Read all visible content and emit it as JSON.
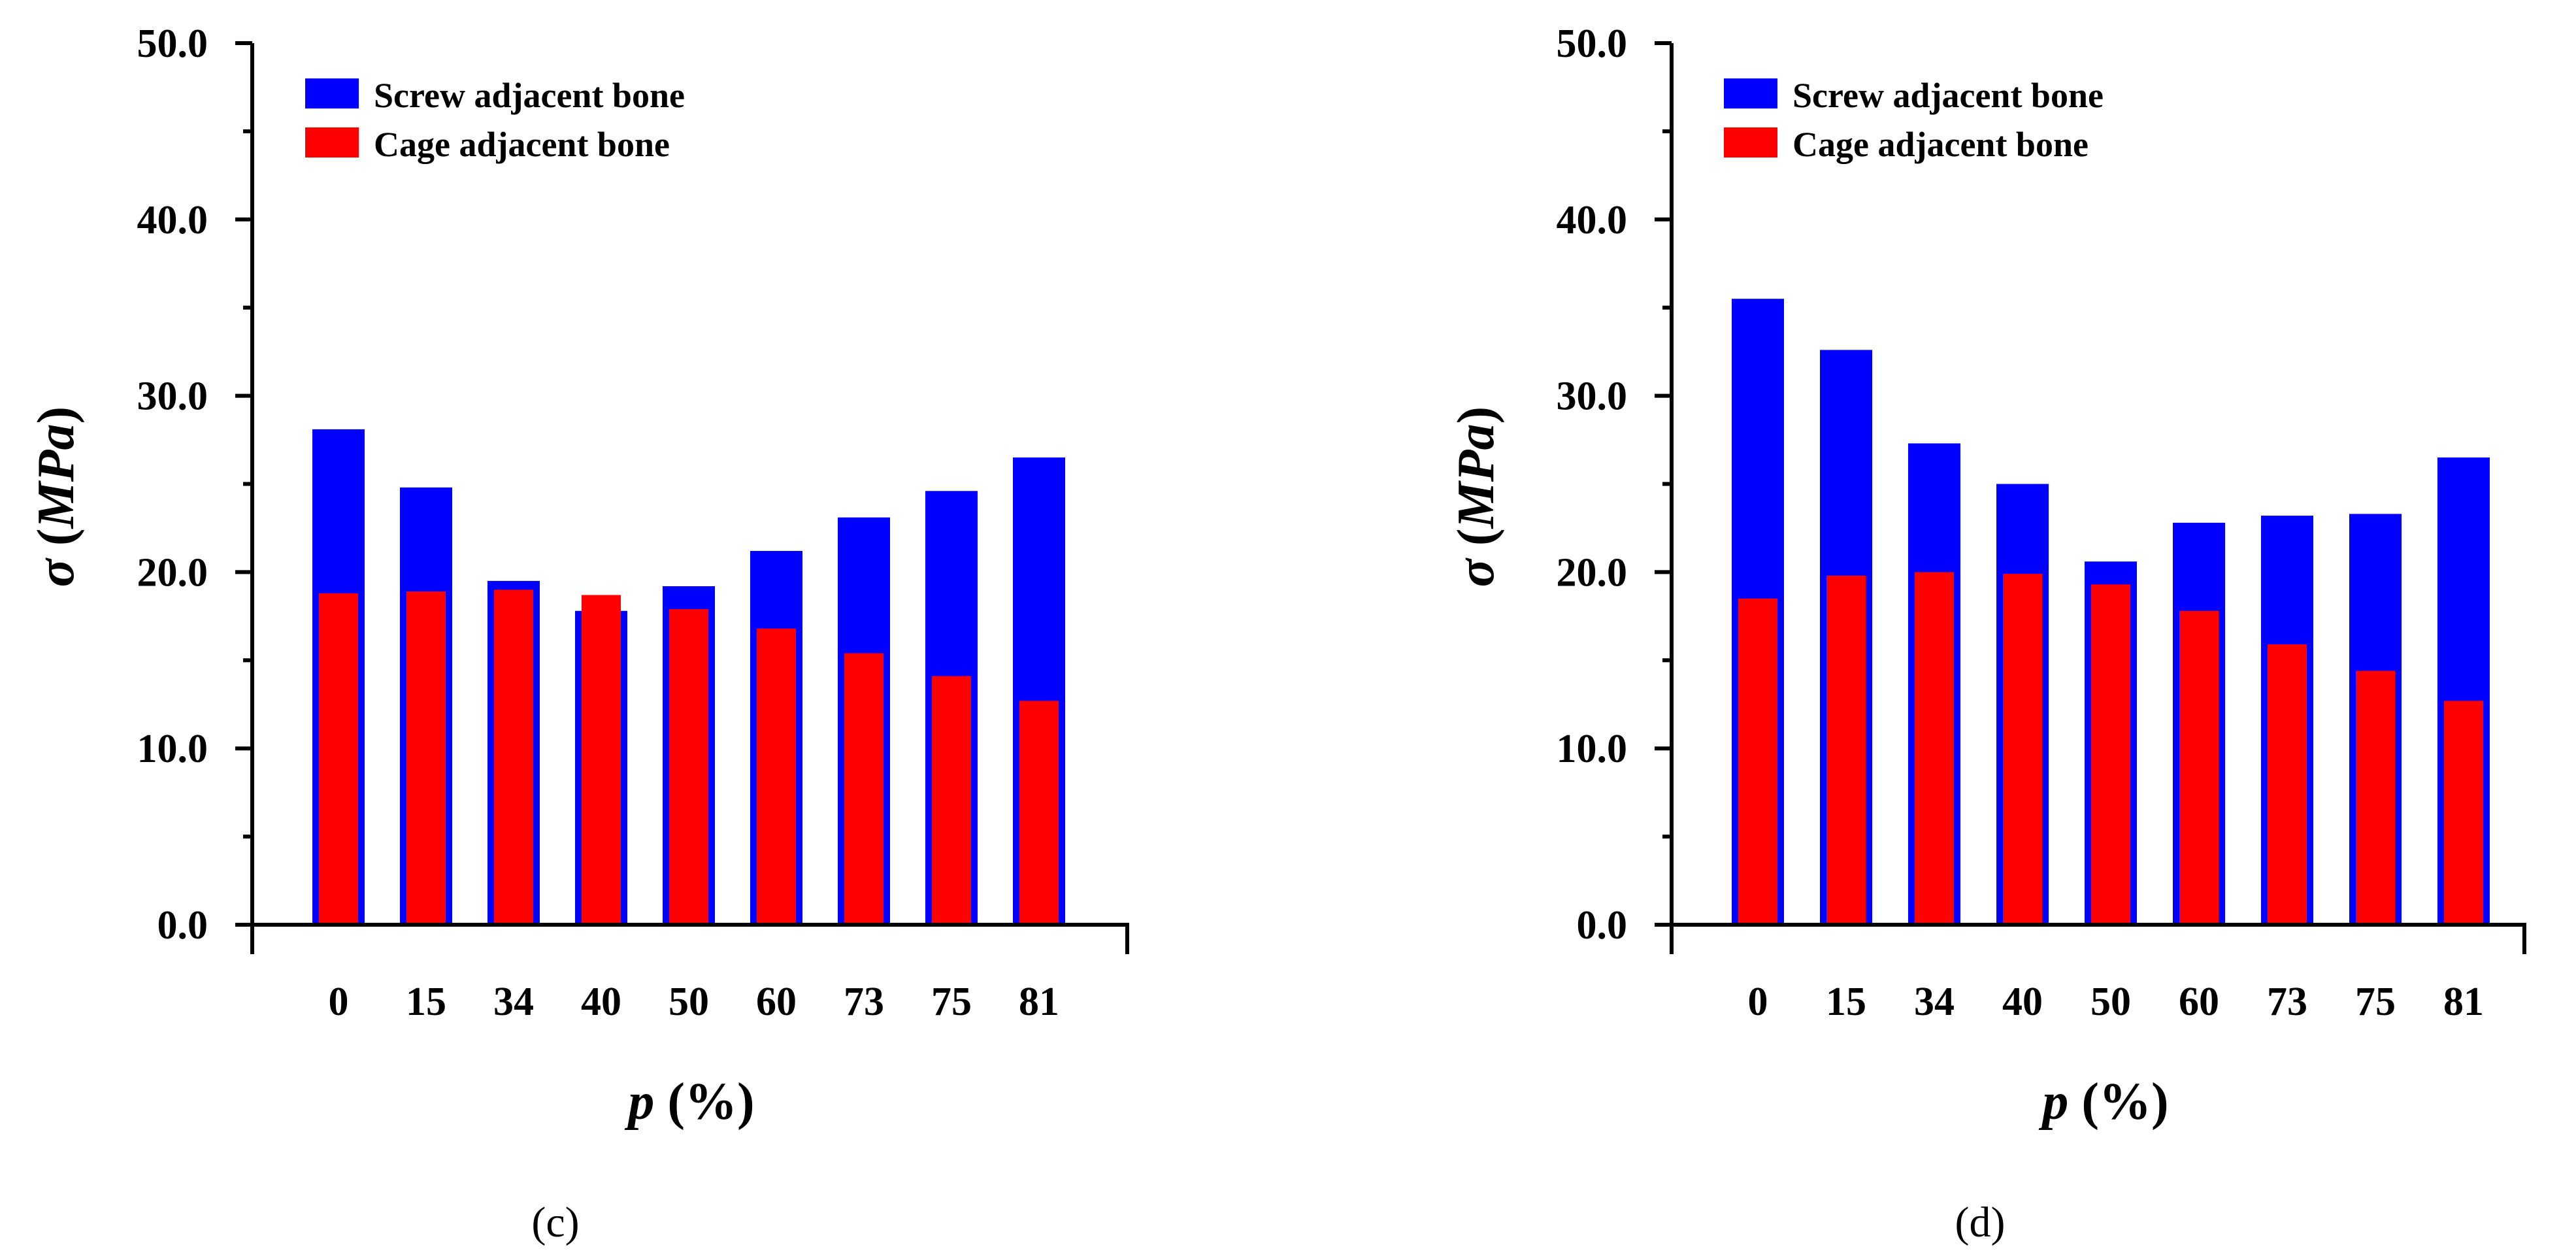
{
  "chart_data": [
    {
      "type": "bar",
      "panel_label": "(c)",
      "categories": [
        "0",
        "15",
        "34",
        "40",
        "50",
        "60",
        "73",
        "75",
        "81"
      ],
      "series": [
        {
          "name": "Screw adjacent bone",
          "color": "#0000ff",
          "values": [
            28.1,
            24.8,
            19.5,
            17.8,
            19.2,
            21.2,
            23.1,
            24.6,
            26.5
          ]
        },
        {
          "name": "Cage adjacent bone",
          "color": "#ff0000",
          "values": [
            18.8,
            18.9,
            19.0,
            18.7,
            17.9,
            16.8,
            15.4,
            14.1,
            12.7
          ]
        }
      ],
      "ylim": [
        0,
        50
      ],
      "yticks": [
        "0.0",
        "10.0",
        "20.0",
        "30.0",
        "40.0",
        "50.0"
      ],
      "ytick_values": [
        0,
        10,
        20,
        30,
        40,
        50
      ],
      "ylabel": {
        "symbol": "σ",
        "open": " (",
        "unit": "MPa",
        "close": ")"
      },
      "xlabel": {
        "symbol": "p",
        "rest": " (%)"
      },
      "legend": {
        "location": "top-left"
      }
    },
    {
      "type": "bar",
      "panel_label": "(d)",
      "categories": [
        "0",
        "15",
        "34",
        "40",
        "50",
        "60",
        "73",
        "75",
        "81"
      ],
      "series": [
        {
          "name": "Screw adjacent bone",
          "color": "#0000ff",
          "values": [
            35.5,
            32.6,
            27.3,
            25.0,
            20.6,
            22.8,
            23.2,
            23.3,
            26.5
          ]
        },
        {
          "name": "Cage adjacent bone",
          "color": "#ff0000",
          "values": [
            18.5,
            19.8,
            20.0,
            19.9,
            19.3,
            17.8,
            15.9,
            14.4,
            12.7
          ]
        }
      ],
      "ylim": [
        0,
        50
      ],
      "yticks": [
        "0.0",
        "10.0",
        "20.0",
        "30.0",
        "40.0",
        "50.0"
      ],
      "ytick_values": [
        0,
        10,
        20,
        30,
        40,
        50
      ],
      "ylabel": {
        "symbol": "σ",
        "open": " (",
        "unit": "MPa",
        "close": ")"
      },
      "xlabel": {
        "symbol": "p",
        "rest": " (%)"
      },
      "legend": {
        "location": "top-left"
      }
    }
  ]
}
